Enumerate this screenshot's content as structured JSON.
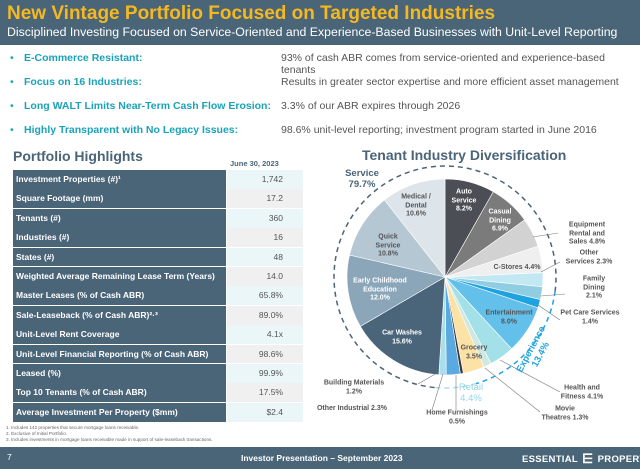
{
  "header": {
    "title": "New Vintage Portfolio Focused on Targeted Industries",
    "subtitle": "Disciplined Investing Focused on Service-Oriented and Experience-Based Businesses with Unit-Level Reporting"
  },
  "bullets": [
    {
      "key": "E-Commerce Resistant:",
      "value": "93% of cash ABR comes from service-oriented and experience-based tenants"
    },
    {
      "key": "Focus on 16 Industries:",
      "value": "Results in greater sector expertise and more efficient asset management"
    },
    {
      "key": "Long WALT Limits Near-Term Cash Flow Erosion:",
      "value": "3.3% of our ABR expires through 2026"
    },
    {
      "key": "Highly Transparent with No Legacy Issues:",
      "value": "98.6% unit-level reporting; investment program started in June 2016"
    }
  ],
  "highlights": {
    "title": "Portfolio Highlights",
    "date": "June 30, 2023",
    "rows": [
      {
        "label": "Investment Properties (#)¹",
        "value": "1,742"
      },
      {
        "label": "Square Footage (mm)",
        "value": "17.2"
      },
      {
        "label": "Tenants (#)",
        "value": "360"
      },
      {
        "label": "Industries (#)",
        "value": "16"
      },
      {
        "label": "States (#)",
        "value": "48"
      },
      {
        "label": "Weighted Average Remaining Lease Term (Years)",
        "value": "14.0"
      },
      {
        "label": "Master Leases (% of Cash ABR)",
        "value": "65.8%"
      },
      {
        "label": "Sale-Leaseback (% of Cash ABR)²·³",
        "value": "89.0%"
      },
      {
        "label": "Unit-Level Rent Coverage",
        "value": "4.1x"
      },
      {
        "label": "Unit-Level Financial Reporting (% of Cash ABR)",
        "value": "98.6%"
      },
      {
        "label": "Leased (%)",
        "value": "99.9%"
      },
      {
        "label": "Top 10 Tenants (% of Cash ABR)",
        "value": "17.5%"
      },
      {
        "label": "Average Investment Per Property ($mm)",
        "value": "$2.4"
      }
    ]
  },
  "footnotes": [
    "1.  Includes 142 properties that secure mortgage loans receivable.",
    "2.  Exclusive of Initial Portfolio.",
    "3.  Includes investments in mortgage loans receivable made in support of sale-leaseback transactions."
  ],
  "footer": {
    "page": "7",
    "presentation": "Investor Presentation – September 2023",
    "logo_left": "ESSENTIAL",
    "logo_right": "PROPERTIES"
  },
  "chart_data": {
    "type": "pie",
    "title": "Tenant Industry Diversification",
    "groups": [
      {
        "name": "Service",
        "value": "79.7%"
      },
      {
        "name": "Experience",
        "value": "13.4%"
      },
      {
        "name": "Retail",
        "value": "4.4%"
      }
    ],
    "slices": [
      {
        "label": "Auto Service",
        "value": 8.2,
        "color": "#4b4f55"
      },
      {
        "label": "Casual Dining",
        "value": 6.9,
        "color": "#7b7b7b"
      },
      {
        "label": "Equipment Rental and Sales",
        "value": 4.8,
        "color": "#d2d2d2"
      },
      {
        "label": "C-Stores",
        "value": 4.4,
        "color": "#efefef"
      },
      {
        "label": "Other Services",
        "value": 2.3,
        "color": "#c2e8f4"
      },
      {
        "label": "Family Dining",
        "value": 2.1,
        "color": "#8fcde2"
      },
      {
        "label": "Pet Care Services",
        "value": 1.4,
        "color": "#1fa2e0"
      },
      {
        "label": "Entertainment",
        "value": 8.0,
        "color": "#62c0ea"
      },
      {
        "label": "Health and Fitness",
        "value": 4.1,
        "color": "#a3e0e8"
      },
      {
        "label": "Movie Theatres",
        "value": 1.3,
        "color": "#cfe9e2"
      },
      {
        "label": "Grocery",
        "value": 3.5,
        "color": "#fde2a6"
      },
      {
        "label": "Home Furnishings",
        "value": 0.5,
        "color": "#3b3b3b"
      },
      {
        "label": "Other Industrial",
        "value": 2.3,
        "color": "#5aa9e0"
      },
      {
        "label": "Building Materials",
        "value": 1.2,
        "color": "#a9dfe9"
      },
      {
        "label": "Car Washes",
        "value": 15.6,
        "color": "#4a6579"
      },
      {
        "label": "Early Childhood Education",
        "value": 12.0,
        "color": "#8ba6b9"
      },
      {
        "label": "Quick Service",
        "value": 10.8,
        "color": "#b5c7d3"
      },
      {
        "label": "Medical / Dental",
        "value": 10.6,
        "color": "#dde4ea"
      }
    ]
  }
}
